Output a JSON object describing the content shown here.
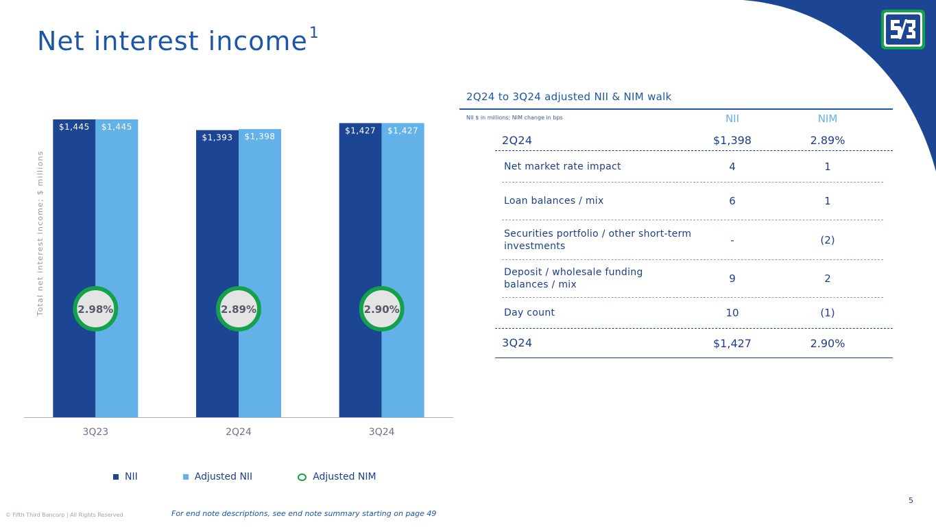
{
  "header": {
    "title": "Net interest income",
    "title_sup": "1",
    "brand_color": "#1b3f8b",
    "logo_icon": "fifth-third-logo"
  },
  "chart_data": {
    "type": "bar",
    "categories": [
      "3Q23",
      "2Q24",
      "3Q24"
    ],
    "series": [
      {
        "name": "NII",
        "values": [
          1445,
          1393,
          1427
        ],
        "labels": [
          "$1,445",
          "$1,393",
          "$1,427"
        ],
        "color": "#1c4593"
      },
      {
        "name": "Adjusted NII",
        "values": [
          1445,
          1398,
          1427
        ],
        "labels": [
          "$1,445",
          "$1,398",
          "$1,427"
        ],
        "color": "#62b1e8"
      }
    ],
    "nim": {
      "name": "Adjusted NIM",
      "values": [
        2.98,
        2.89,
        2.9
      ],
      "labels": [
        "2.98%",
        "2.89%",
        "2.90%"
      ],
      "ring_color": "#13a24b"
    },
    "ylabel": "Total net interest income; $ millions",
    "legend": [
      "NII",
      "Adjusted NII",
      "Adjusted NIM"
    ],
    "legend_position": "bottom",
    "grid": false
  },
  "walk": {
    "title": "2Q24 to 3Q24 adjusted NII & NIM walk",
    "note": "NII $ in millions; NIM change in bps",
    "col1": "NII",
    "col2": "NIM",
    "start": {
      "label": "2Q24",
      "nii": "$1,398",
      "nim": "2.89%"
    },
    "rows": [
      {
        "label": "Net market rate impact",
        "nii": "4",
        "nim": "1"
      },
      {
        "label": "Loan balances / mix",
        "nii": "6",
        "nim": "1"
      },
      {
        "label": "Securities portfolio / other short-term investments",
        "nii": "-",
        "nim": "(2)"
      },
      {
        "label": "Deposit / wholesale funding balances / mix",
        "nii": "9",
        "nim": "2"
      },
      {
        "label": "Day count",
        "nii": "10",
        "nim": "(1)"
      }
    ],
    "end": {
      "label": "3Q24",
      "nii": "$1,427",
      "nim": "2.90%"
    }
  },
  "footer": {
    "page": "5",
    "copyright": "© Fifth Third Bancorp | All Rights Reserved",
    "note": "For end note descriptions, see end note summary starting on page 49"
  }
}
